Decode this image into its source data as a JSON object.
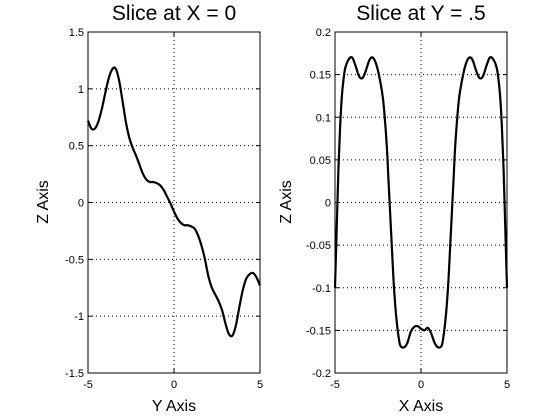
{
  "chart_data": [
    {
      "type": "line",
      "title": "Slice at X = 0",
      "xlabel": "Y Axis",
      "ylabel": "Z Axis",
      "xlim": [
        -5,
        5
      ],
      "ylim": [
        -1.5,
        1.5
      ],
      "xticks": [
        -5,
        0,
        5
      ],
      "xtick_labels": [
        "-5",
        "0",
        "5"
      ],
      "yticks": [
        -1.5,
        -1,
        -0.5,
        0,
        0.5,
        1,
        1.5
      ],
      "ytick_labels": [
        "-1.5",
        "-1",
        "-0.5",
        "0",
        "0.5",
        "1",
        "1.5"
      ],
      "grid": true,
      "series": [
        {
          "x": [
            -5,
            -4.8,
            -4.6,
            -4.4,
            -4.2,
            -4.0,
            -3.8,
            -3.6,
            -3.4,
            -3.2,
            -3.0,
            -2.8,
            -2.6,
            -2.4,
            -2.2,
            -2.0,
            -1.8,
            -1.6,
            -1.4,
            -1.2,
            -1.0,
            -0.8,
            -0.6,
            -0.4,
            -0.2,
            0.0,
            0.2,
            0.4,
            0.6,
            0.8,
            1.0,
            1.2,
            1.4,
            1.6,
            1.8,
            2.0,
            2.2,
            2.4,
            2.6,
            2.8,
            3.0,
            3.2,
            3.4,
            3.6,
            3.8,
            4.0,
            4.2,
            4.4,
            4.6,
            4.8,
            5.0
          ],
          "values": [
            0.72,
            0.65,
            0.65,
            0.71,
            0.82,
            0.96,
            1.09,
            1.17,
            1.18,
            1.08,
            0.9,
            0.71,
            0.57,
            0.48,
            0.41,
            0.33,
            0.25,
            0.2,
            0.18,
            0.18,
            0.17,
            0.15,
            0.11,
            0.05,
            -0.01,
            -0.08,
            -0.14,
            -0.18,
            -0.2,
            -0.2,
            -0.21,
            -0.23,
            -0.29,
            -0.38,
            -0.5,
            -0.65,
            -0.75,
            -0.81,
            -0.87,
            -0.95,
            -1.07,
            -1.16,
            -1.17,
            -1.08,
            -0.92,
            -0.77,
            -0.67,
            -0.63,
            -0.62,
            -0.66,
            -0.73
          ]
        }
      ]
    },
    {
      "type": "line",
      "title": "Slice at Y = .5",
      "xlabel": "X Axis",
      "ylabel": "Z Axis",
      "xlim": [
        -5,
        5
      ],
      "ylim": [
        -0.2,
        0.2
      ],
      "xticks": [
        -5,
        0,
        5
      ],
      "xtick_labels": [
        "-5",
        "0",
        "5"
      ],
      "yticks": [
        -0.2,
        -0.15,
        -0.1,
        -0.05,
        0,
        0.05,
        0.1,
        0.15,
        0.2
      ],
      "ytick_labels": [
        "-0.2",
        "-0.15",
        "-0.1",
        "-0.05",
        "0",
        "0.05",
        "0.1",
        "0.15",
        "0.2"
      ],
      "grid": true,
      "series": [
        {
          "x": [
            -5.0,
            -4.9,
            -4.8,
            -4.7,
            -4.6,
            -4.5,
            -4.4,
            -4.2,
            -4.0,
            -3.8,
            -3.6,
            -3.4,
            -3.2,
            -3.0,
            -2.8,
            -2.6,
            -2.4,
            -2.2,
            -2.0,
            -1.9,
            -1.8,
            -1.7,
            -1.6,
            -1.5,
            -1.4,
            -1.3,
            -1.2,
            -1.0,
            -0.8,
            -0.6,
            -0.4,
            -0.2,
            0.0,
            0.2,
            0.4,
            0.6,
            0.8,
            1.0,
            1.2,
            1.3,
            1.4,
            1.5,
            1.6,
            1.7,
            1.8,
            1.9,
            2.0,
            2.2,
            2.4,
            2.6,
            2.8,
            3.0,
            3.2,
            3.4,
            3.6,
            3.8,
            4.0,
            4.2,
            4.4,
            4.5,
            4.6,
            4.7,
            4.8,
            4.9,
            5.0
          ],
          "values": [
            -0.1,
            -0.03,
            0.04,
            0.09,
            0.125,
            0.145,
            0.158,
            0.168,
            0.17,
            0.16,
            0.148,
            0.146,
            0.155,
            0.167,
            0.17,
            0.162,
            0.145,
            0.12,
            0.07,
            0.03,
            -0.01,
            -0.05,
            -0.09,
            -0.12,
            -0.142,
            -0.158,
            -0.168,
            -0.17,
            -0.165,
            -0.152,
            -0.146,
            -0.145,
            -0.148,
            -0.15,
            -0.147,
            -0.154,
            -0.165,
            -0.17,
            -0.168,
            -0.158,
            -0.142,
            -0.12,
            -0.09,
            -0.05,
            -0.01,
            0.03,
            0.07,
            0.12,
            0.145,
            0.162,
            0.17,
            0.167,
            0.155,
            0.146,
            0.148,
            0.16,
            0.17,
            0.168,
            0.158,
            0.145,
            0.125,
            0.09,
            0.04,
            -0.03,
            -0.1
          ]
        }
      ]
    }
  ]
}
